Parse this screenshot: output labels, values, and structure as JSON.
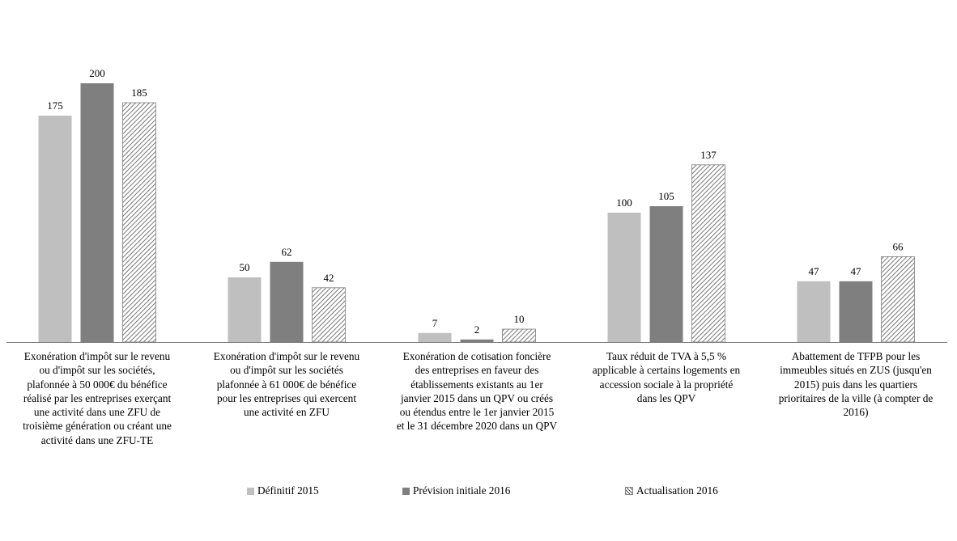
{
  "chart_data": {
    "type": "bar",
    "categories": [
      [
        "Exonération d'impôt sur le revenu",
        "ou d'impôt sur les sociétés,",
        "plafonnée à 50 000€ du bénéfice",
        "réalisé par les entreprises exerçant",
        "une activité dans une ZFU de",
        "troisième génération ou créant une",
        "activité dans une ZFU-TE"
      ],
      [
        "Exonération d'impôt sur le revenu",
        "ou d'impôt sur les sociétés",
        "plafonnée à 61 000€ de bénéfice",
        "pour les entreprises qui exercent",
        "une activité en ZFU"
      ],
      [
        "Exonération de cotisation foncière",
        "des entreprises en faveur des",
        "établissements existants au 1er",
        "janvier 2015 dans un QPV ou créés",
        "ou étendus entre le 1er janvier 2015",
        "et le 31 décembre 2020 dans un QPV"
      ],
      [
        "Taux réduit de TVA à 5,5 %",
        "applicable à certains logements en",
        "accession sociale à la propriété",
        "dans les QPV"
      ],
      [
        "Abattement de TFPB pour les",
        "immeubles situés en ZUS (jusqu'en",
        "2015) puis dans les quartiers",
        "prioritaires de la ville (à compter de",
        "2016)"
      ]
    ],
    "series": [
      {
        "name": "Définitif 2015",
        "values": [
          175,
          50,
          7,
          100,
          47
        ],
        "color": "#bfbfbf",
        "pattern": "solid"
      },
      {
        "name": "Prévision initiale 2016",
        "values": [
          200,
          62,
          2,
          105,
          47
        ],
        "color": "#7f7f7f",
        "pattern": "solid"
      },
      {
        "name": "Actualisation 2016",
        "values": [
          185,
          42,
          10,
          137,
          66
        ],
        "color": "#7f7f7f",
        "pattern": "diagonal-hatch"
      }
    ],
    "title": "",
    "xlabel": "",
    "ylabel": "",
    "ylim": [
      0,
      200
    ],
    "grid": false,
    "data_labels": true,
    "legend_position": "bottom"
  }
}
